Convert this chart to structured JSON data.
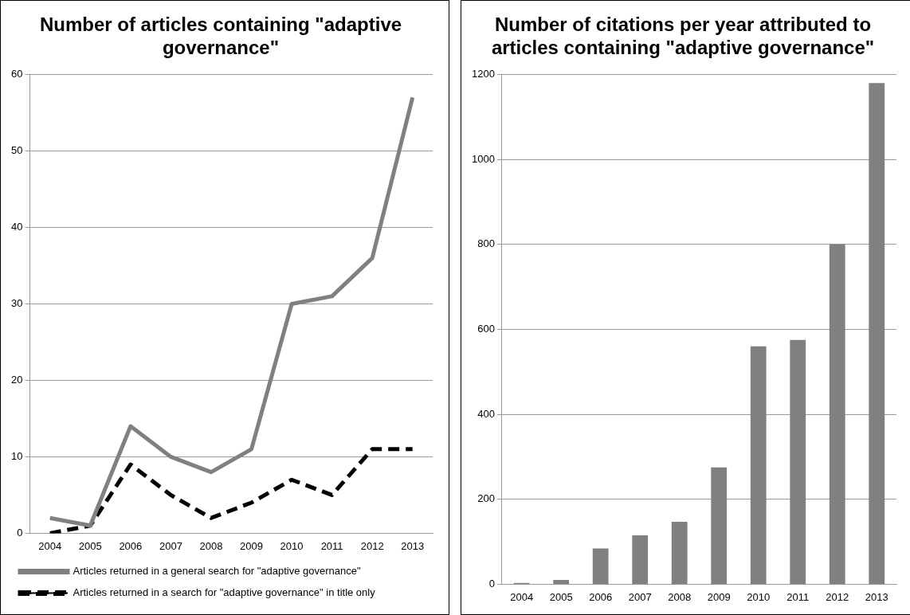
{
  "chart_data": [
    {
      "type": "line",
      "title": "Number of articles containing \"adaptive governance\"",
      "categories": [
        "2004",
        "2005",
        "2006",
        "2007",
        "2008",
        "2009",
        "2010",
        "2011",
        "2012",
        "2013"
      ],
      "series": [
        {
          "name": "Articles returned in a general search for \"adaptive governance\"",
          "color": "#808080",
          "line_style": "solid",
          "values": [
            2,
            1,
            14,
            10,
            8,
            11,
            30,
            31,
            36,
            57
          ]
        },
        {
          "name": "Articles returned in a search for \"adaptive governance\" in title only",
          "color": "#000000",
          "line_style": "dashed",
          "values": [
            0,
            1,
            9,
            5,
            2,
            4,
            7,
            5,
            11,
            11
          ]
        }
      ],
      "ylim": [
        0,
        60
      ],
      "yticks": [
        0,
        10,
        20,
        30,
        40,
        50,
        60
      ],
      "grid": "y",
      "legend": "bottom",
      "marker": "none"
    },
    {
      "type": "bar",
      "title": "Number of citations per year attributed to articles containing \"adaptive governance\"",
      "categories": [
        "2004",
        "2005",
        "2006",
        "2007",
        "2008",
        "2009",
        "2010",
        "2011",
        "2012",
        "2013"
      ],
      "values": [
        3,
        10,
        84,
        115,
        147,
        275,
        560,
        575,
        800,
        1180
      ],
      "color": "#808080",
      "ylim": [
        0,
        1200
      ],
      "yticks": [
        0,
        200,
        400,
        600,
        800,
        1000,
        1200
      ],
      "grid": "y",
      "legend": false
    }
  ]
}
